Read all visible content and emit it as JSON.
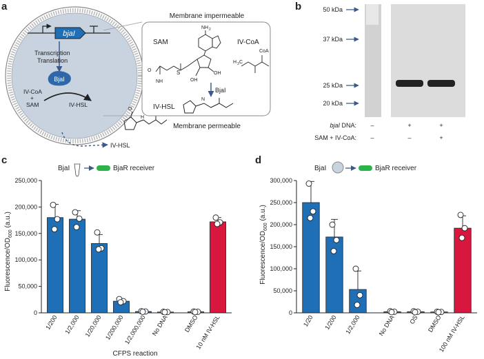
{
  "colors": {
    "bar_blue": "#1f6fb6",
    "bar_red": "#d8173f",
    "cell_fill": "#c9d3df",
    "protein_blue": "#2f68a8",
    "green": "#2db34a",
    "arrow": "#3b5a8a",
    "gel_bg": "#dcdcdc"
  },
  "panel_a": {
    "label": "a",
    "gene": "bjaI",
    "transcription": "Transcription",
    "translation": "Translation",
    "protein": "BjaI",
    "ivcoa": "IV-CoA",
    "plus": "+",
    "sam": "SAM",
    "ivhsl_inside": "IV-HSL",
    "ivhsl_outside": "IV-HSL",
    "box_top": "Membrane impermeable",
    "box_bottom": "Membrane permeable",
    "box_sam": "SAM",
    "box_ivcoa": "IV-CoA",
    "box_enzyme": "BjaI",
    "box_ivhsl": "IV-HSL",
    "atoms": {
      "nh2_top": "NH",
      "nh2_sub": "2",
      "nh2_bottom": "NH",
      "oh1": "OH",
      "oh2": "OH",
      "s_plus": "S",
      "o_minus": "O",
      "coa": "CoA",
      "h3c": "H",
      "h3c_sub": "3",
      "h3c_c": "C",
      "h": "H",
      "n": "N",
      "o": "O",
      "o2": "O"
    }
  },
  "panel_b": {
    "label": "b",
    "markers": [
      "50 kDa",
      "37 kDa",
      "25 kDa",
      "20 kDa"
    ],
    "row1_label_italic": "bjaI",
    "row1_label_rest": " DNA:",
    "row2_label": "SAM + IV-CoA:",
    "row1": [
      "–",
      "+",
      "+"
    ],
    "row2": [
      "–",
      "–",
      "+"
    ]
  },
  "panel_c": {
    "label": "c",
    "schematic_left": "BjaI",
    "schematic_right": "BjaR receiver",
    "ylabel_prefix": "Fluorescence/OD",
    "ylabel_sub": "600",
    "ylabel_suffix": " (a.u.)",
    "xlabel": "CFPS reaction"
  },
  "panel_d": {
    "label": "d",
    "schematic_left": "BjaI",
    "schematic_right": "BjaR receiver",
    "ylabel_prefix": "Fluorescence/OD",
    "ylabel_sub": "600",
    "ylabel_suffix": " (a.u.)"
  },
  "chart_data": [
    {
      "type": "bar",
      "panel": "c",
      "categories": [
        "1/200",
        "1/2,000",
        "1/20,000",
        "1/200,000",
        "1/2,000,000",
        "No DNA",
        "DMSO",
        "10 nM IV-HSL"
      ],
      "gap_after_index": 5,
      "values": [
        180000,
        177000,
        131000,
        22000,
        2500,
        1500,
        2000,
        172000
      ],
      "errors": [
        25000,
        16000,
        17000,
        3000,
        800,
        600,
        700,
        8000
      ],
      "points": [
        [
          204000,
          177000,
          158000
        ],
        [
          190000,
          178000,
          162000
        ],
        [
          152000,
          122000,
          120000
        ],
        [
          26000,
          22000,
          20000
        ],
        [
          3000,
          2500,
          2000
        ],
        [
          2000,
          1500,
          1200
        ],
        [
          2500,
          2000,
          1500
        ],
        [
          180000,
          171000,
          168000
        ]
      ],
      "bar_colors": [
        "blue",
        "blue",
        "blue",
        "blue",
        "blue",
        "blue",
        "blue",
        "red"
      ],
      "ylim": [
        0,
        250000
      ],
      "yticks": [
        "0",
        "50,000",
        "100,000",
        "150,000",
        "200,000",
        "250,000"
      ],
      "xlabel": "CFPS reaction",
      "ylabel": "Fluorescence/OD600 (a.u.)"
    },
    {
      "type": "bar",
      "panel": "d",
      "categories": [
        "1/20",
        "1/200",
        "1/2,000",
        "No DNA",
        "OS",
        "DMSO",
        "100 nM IV-HSL"
      ],
      "gap_after_index": 2,
      "values": [
        250000,
        172000,
        53000,
        2500,
        2500,
        2000,
        192000
      ],
      "errors": [
        48000,
        40000,
        42000,
        1000,
        1000,
        800,
        28000
      ],
      "points": [
        [
          293000,
          230000,
          215000
        ],
        [
          200000,
          165000,
          140000
        ],
        [
          100000,
          40000,
          18000
        ],
        [
          3500,
          2500,
          1500
        ],
        [
          3500,
          2500,
          1500
        ],
        [
          2500,
          2000,
          1500
        ],
        [
          222000,
          192000,
          170000
        ]
      ],
      "bar_colors": [
        "blue",
        "blue",
        "blue",
        "blue",
        "blue",
        "blue",
        "red"
      ],
      "ylim": [
        0,
        300000
      ],
      "yticks": [
        "0",
        "50,000",
        "100,000",
        "150,000",
        "200,000",
        "250,000",
        "300,000"
      ],
      "xlabel": "",
      "ylabel": "Fluorescence/OD600 (a.u.)"
    }
  ]
}
